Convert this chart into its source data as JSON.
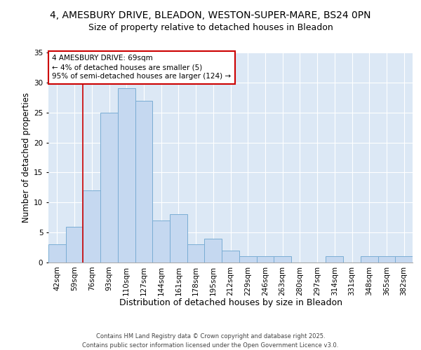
{
  "title1": "4, AMESBURY DRIVE, BLEADON, WESTON-SUPER-MARE, BS24 0PN",
  "title2": "Size of property relative to detached houses in Bleadon",
  "xlabel": "Distribution of detached houses by size in Bleadon",
  "ylabel": "Number of detached properties",
  "bar_labels": [
    "42sqm",
    "59sqm",
    "76sqm",
    "93sqm",
    "110sqm",
    "127sqm",
    "144sqm",
    "161sqm",
    "178sqm",
    "195sqm",
    "212sqm",
    "229sqm",
    "246sqm",
    "263sqm",
    "280sqm",
    "297sqm",
    "314sqm",
    "331sqm",
    "348sqm",
    "365sqm",
    "382sqm"
  ],
  "bar_heights": [
    3,
    6,
    12,
    25,
    29,
    27,
    7,
    8,
    3,
    4,
    2,
    1,
    1,
    1,
    0,
    0,
    1,
    0,
    1,
    1,
    1
  ],
  "bar_color": "#c5d8f0",
  "bar_edge_color": "#7aadd4",
  "annotation_text": "4 AMESBURY DRIVE: 69sqm\n← 4% of detached houses are smaller (5)\n95% of semi-detached houses are larger (124) →",
  "annotation_box_color": "#ffffff",
  "annotation_box_edge": "#cc0000",
  "red_line_index": 2,
  "ylim": [
    0,
    35
  ],
  "yticks": [
    0,
    5,
    10,
    15,
    20,
    25,
    30,
    35
  ],
  "background_color": "#dce8f5",
  "footer": "Contains HM Land Registry data © Crown copyright and database right 2025.\nContains public sector information licensed under the Open Government Licence v3.0.",
  "title1_fontsize": 10,
  "title2_fontsize": 9,
  "xlabel_fontsize": 9,
  "ylabel_fontsize": 8.5,
  "tick_fontsize": 7.5,
  "footer_fontsize": 6
}
